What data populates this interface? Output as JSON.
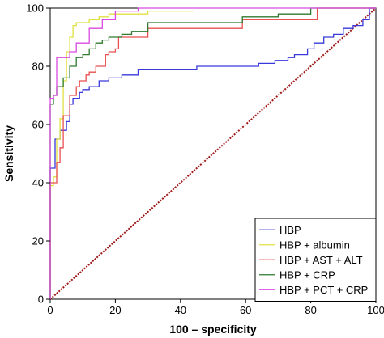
{
  "chart_data": {
    "type": "line",
    "xlabel": "100 – specificity",
    "ylabel": "Sensitivity",
    "xlim": [
      0,
      100
    ],
    "ylim": [
      0,
      100
    ],
    "x_ticks": [
      0,
      20,
      40,
      60,
      80,
      100
    ],
    "y_ticks": [
      0,
      20,
      40,
      60,
      80,
      100
    ],
    "grid": false,
    "legend_position": "bottom-right",
    "reference_line": {
      "x": [
        0,
        100
      ],
      "y": [
        0,
        100
      ],
      "color": "#a01818",
      "style": "dotted"
    },
    "series": [
      {
        "name": "HBP",
        "color": "#3a3adb",
        "x": [
          0,
          0,
          1.5,
          1.5,
          3,
          3,
          5,
          5,
          6,
          6,
          7,
          7,
          9,
          9,
          10,
          10,
          12,
          12,
          15,
          15,
          18,
          18,
          22,
          22,
          27,
          27,
          29,
          29,
          45,
          45,
          60,
          60,
          64,
          64,
          69,
          69,
          73,
          73,
          75,
          75,
          79,
          79,
          81,
          81,
          84,
          84,
          87,
          87,
          90,
          90,
          93,
          93,
          96,
          96,
          98,
          98,
          100
        ],
        "y": [
          0,
          45,
          45,
          55,
          55,
          58,
          58,
          61,
          61,
          67,
          67,
          69,
          69,
          71,
          71,
          72,
          72,
          73,
          73,
          75,
          75,
          76,
          76,
          77,
          77,
          79,
          79,
          79,
          79,
          80,
          80,
          80,
          80,
          81,
          81,
          82,
          82,
          83,
          83,
          84,
          84,
          86,
          86,
          88,
          88,
          90,
          90,
          91,
          91,
          93,
          93,
          94,
          94,
          96,
          96,
          100,
          100
        ]
      },
      {
        "name": "HBP + albumin",
        "color": "#e0e040",
        "x": [
          0,
          0,
          1,
          1,
          2,
          2,
          3,
          3,
          4,
          4,
          5,
          5,
          6,
          6,
          7,
          7,
          8,
          8,
          12,
          12,
          15,
          15,
          18,
          18,
          23,
          23,
          30,
          30,
          38,
          38,
          44
        ],
        "y": [
          0,
          39,
          39,
          42,
          42,
          55,
          55,
          62,
          62,
          75,
          75,
          85,
          85,
          90,
          90,
          94,
          94,
          95,
          95,
          96,
          96,
          97,
          97,
          98,
          98,
          98,
          98,
          99,
          99,
          99,
          99
        ]
      },
      {
        "name": "HBP + AST + ALT",
        "color": "#e85050",
        "x": [
          0,
          0,
          2,
          2,
          3,
          3,
          4,
          4,
          6,
          6,
          8,
          8,
          9,
          9,
          11,
          11,
          12,
          12,
          14,
          14,
          17,
          17,
          18,
          18,
          20,
          20,
          21,
          21,
          30,
          30,
          59,
          59,
          82,
          82,
          100
        ],
        "y": [
          0,
          40,
          40,
          47,
          47,
          52,
          52,
          63,
          63,
          70,
          70,
          73,
          73,
          75,
          75,
          77,
          77,
          78,
          78,
          80,
          80,
          84,
          84,
          85,
          85,
          86,
          86,
          90,
          90,
          93,
          93,
          96,
          96,
          100,
          100
        ]
      },
      {
        "name": "HBP + CRP",
        "color": "#2f7a2f",
        "x": [
          0,
          0,
          1,
          1,
          2,
          2,
          4,
          4,
          6,
          6,
          8,
          8,
          10,
          10,
          12,
          12,
          14,
          14,
          16,
          16,
          18,
          18,
          20,
          20,
          22,
          22,
          25,
          25,
          30,
          30,
          59,
          59,
          70,
          70,
          80,
          80,
          100
        ],
        "y": [
          0,
          67,
          67,
          70,
          70,
          73,
          73,
          76,
          76,
          80,
          80,
          83,
          83,
          84,
          84,
          86,
          86,
          88,
          88,
          89,
          89,
          90,
          90,
          90,
          90,
          91,
          91,
          92,
          92,
          95,
          95,
          97,
          97,
          98,
          98,
          100,
          100
        ]
      },
      {
        "name": "HBP + PCT + CRP",
        "color": "#d94be0",
        "x": [
          0,
          0,
          1,
          1,
          2,
          2,
          6,
          6,
          8,
          8,
          12,
          12,
          16,
          16,
          20,
          20,
          27,
          27,
          39,
          39,
          100
        ],
        "y": [
          0,
          69,
          69,
          70,
          70,
          83,
          83,
          85,
          85,
          88,
          88,
          93,
          93,
          96,
          96,
          99,
          99,
          100,
          100,
          100,
          100
        ]
      }
    ]
  }
}
